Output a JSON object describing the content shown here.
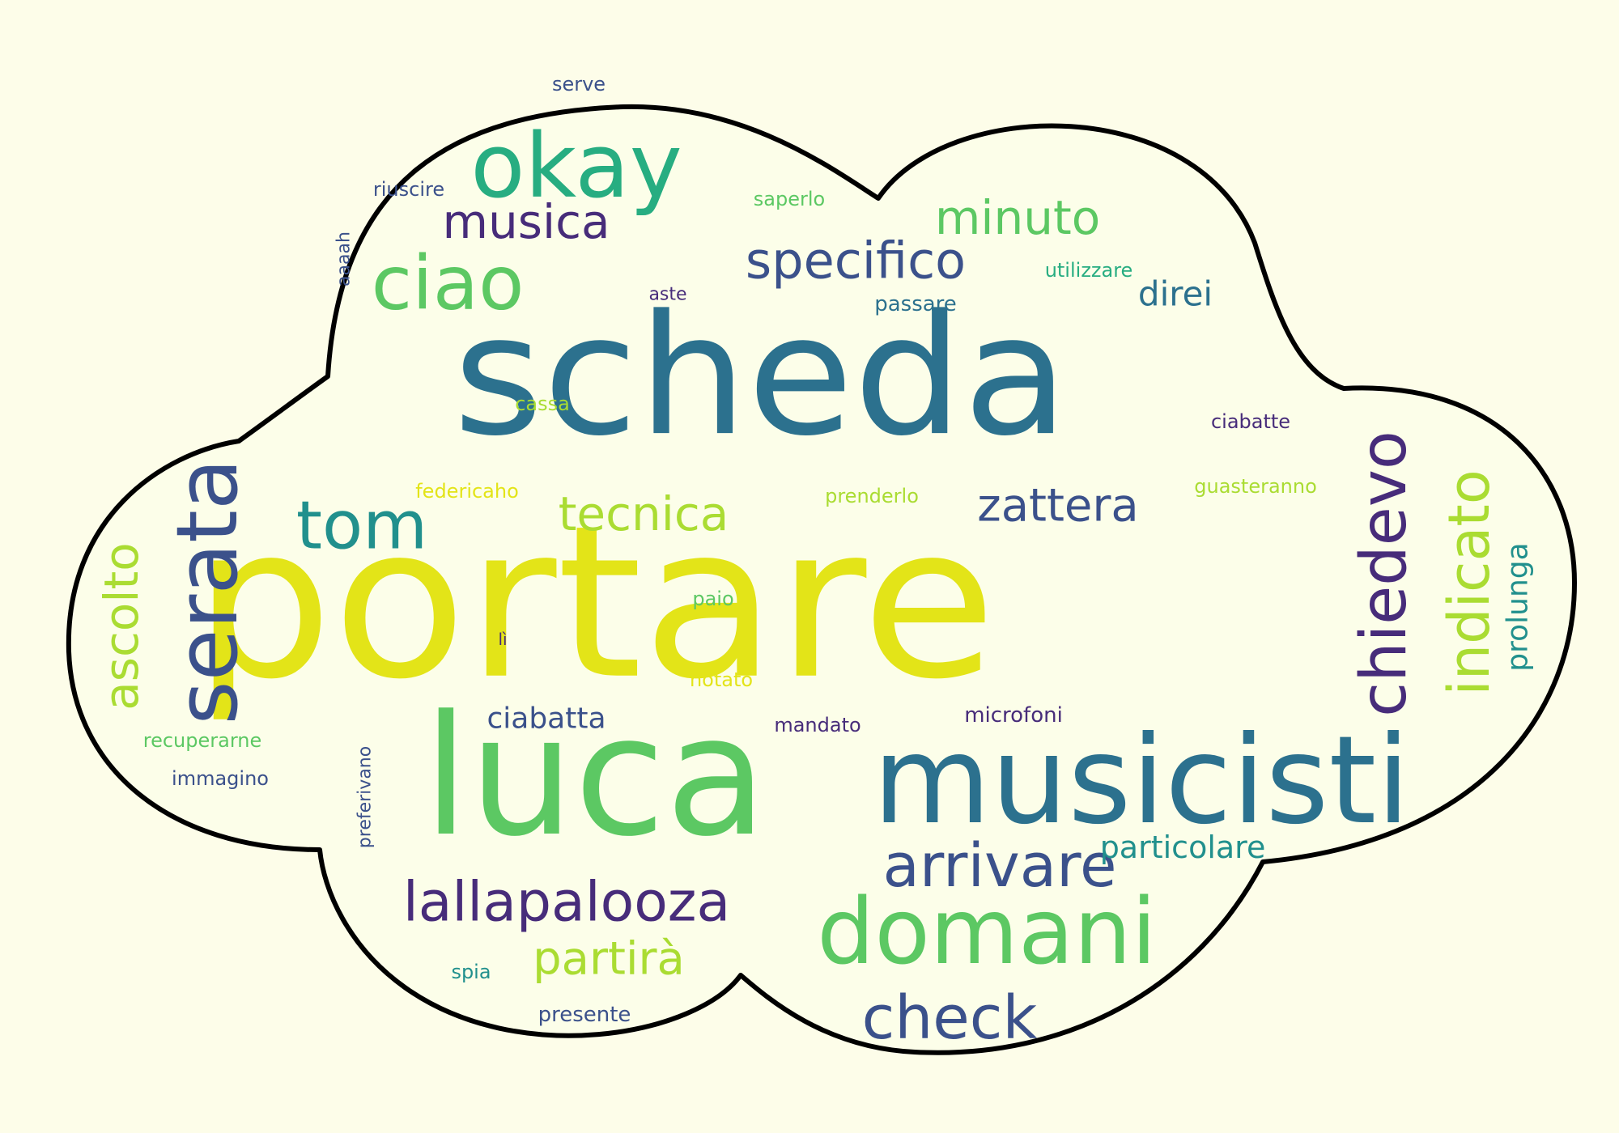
{
  "palette": {
    "background": "#fdfde9",
    "cloud_fill": "#fcfee9",
    "cloud_stroke": "#000000",
    "purple": "#472c7a",
    "indigo": "#3b518b",
    "blue": "#2c718e",
    "teal": "#21908d",
    "green": "#27ad81",
    "lightgreen": "#5cc863",
    "lime": "#aadc32",
    "yellow": "#e3e418"
  },
  "words": [
    {
      "text": "portare",
      "color": "#e3e418",
      "rank": 1
    },
    {
      "text": "scheda",
      "color": "#2c718e",
      "rank": 2
    },
    {
      "text": "luca",
      "color": "#5cc863",
      "rank": 3
    },
    {
      "text": "musicisti",
      "color": "#2c718e",
      "rank": 4
    },
    {
      "text": "okay",
      "color": "#27ad81",
      "rank": 5
    },
    {
      "text": "domani",
      "color": "#5cc863",
      "rank": 6
    },
    {
      "text": "serata",
      "color": "#3b518b",
      "rank": 7
    },
    {
      "text": "chiedevo",
      "color": "#472c7a",
      "rank": 8
    },
    {
      "text": "indicato",
      "color": "#aadc32",
      "rank": 9
    },
    {
      "text": "ciao",
      "color": "#5cc863",
      "rank": 10
    },
    {
      "text": "tom",
      "color": "#21908d",
      "rank": 11
    },
    {
      "text": "arrivare",
      "color": "#3b518b",
      "rank": 12
    },
    {
      "text": "check",
      "color": "#3b518b",
      "rank": 13
    },
    {
      "text": "lallapalooza",
      "color": "#472c7a",
      "rank": 14
    },
    {
      "text": "musica",
      "color": "#472c7a",
      "rank": 15
    },
    {
      "text": "specifico",
      "color": "#3b518b",
      "rank": 16
    },
    {
      "text": "minuto",
      "color": "#5cc863",
      "rank": 17
    },
    {
      "text": "tecnica",
      "color": "#aadc32",
      "rank": 18
    },
    {
      "text": "zattera",
      "color": "#3b518b",
      "rank": 19
    },
    {
      "text": "ascolto",
      "color": "#aadc32",
      "rank": 20
    },
    {
      "text": "partirà",
      "color": "#aadc32",
      "rank": 21
    },
    {
      "text": "direi",
      "color": "#2c718e",
      "rank": 22
    },
    {
      "text": "particolare",
      "color": "#21908d",
      "rank": 23
    },
    {
      "text": "ciabatta",
      "color": "#3b518b",
      "rank": 24
    },
    {
      "text": "prolunga",
      "color": "#21908d",
      "rank": 25
    },
    {
      "text": "serve",
      "color": "#3b518b",
      "rank": 26
    },
    {
      "text": "riuscire",
      "color": "#3b518b",
      "rank": 27
    },
    {
      "text": "saperlo",
      "color": "#5cc863",
      "rank": 28
    },
    {
      "text": "aaaah",
      "color": "#3b518b",
      "rank": 29
    },
    {
      "text": "utilizzare",
      "color": "#27ad81",
      "rank": 30
    },
    {
      "text": "aste",
      "color": "#472c7a",
      "rank": 31
    },
    {
      "text": "passare",
      "color": "#2c718e",
      "rank": 32
    },
    {
      "text": "cassa",
      "color": "#aadc32",
      "rank": 33
    },
    {
      "text": "ciabatte",
      "color": "#472c7a",
      "rank": 34
    },
    {
      "text": "federicaho",
      "color": "#e3e418",
      "rank": 35
    },
    {
      "text": "prenderlo",
      "color": "#aadc32",
      "rank": 36
    },
    {
      "text": "guasteranno",
      "color": "#aadc32",
      "rank": 37
    },
    {
      "text": "paio",
      "color": "#5cc863",
      "rank": 38
    },
    {
      "text": "lì",
      "color": "#472c7a",
      "rank": 39
    },
    {
      "text": "notato",
      "color": "#e3e418",
      "rank": 40
    },
    {
      "text": "mandato",
      "color": "#472c7a",
      "rank": 41
    },
    {
      "text": "microfoni",
      "color": "#472c7a",
      "rank": 42
    },
    {
      "text": "recuperarne",
      "color": "#5cc863",
      "rank": 43
    },
    {
      "text": "immagino",
      "color": "#3b518b",
      "rank": 44
    },
    {
      "text": "preferivano",
      "color": "#3b518b",
      "rank": 45
    },
    {
      "text": "spia",
      "color": "#21908d",
      "rank": 46
    },
    {
      "text": "presente",
      "color": "#3b518b",
      "rank": 47
    }
  ]
}
